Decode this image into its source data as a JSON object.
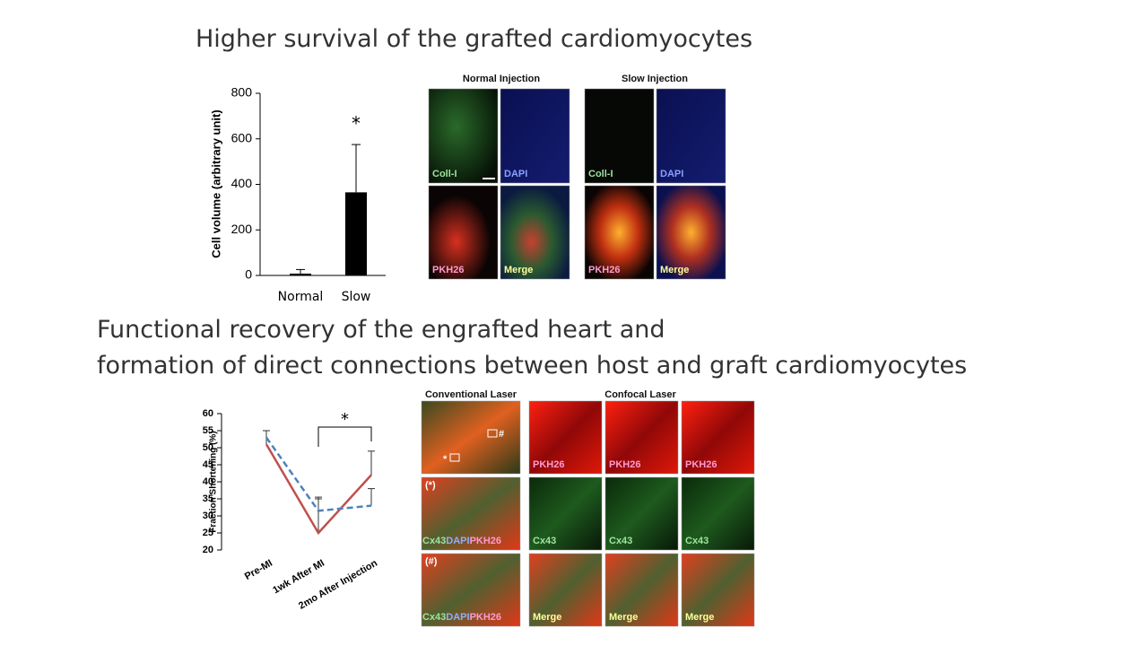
{
  "headings": {
    "top": "Higher survival of the grafted cardiomyocytes",
    "bottom_line1": "Functional recovery of the engrafted heart and",
    "bottom_line2": "formation of direct connections between host and graft cardiomyocytes"
  },
  "chart_data": [
    {
      "type": "bar",
      "categories": [
        "Normal",
        "Slow"
      ],
      "values": [
        8,
        365
      ],
      "errors": [
        18,
        210
      ],
      "color": "#000000",
      "ylim": [
        0,
        800
      ],
      "yticks": [
        0,
        200,
        400,
        600,
        800
      ],
      "ylabel": "Cell volume (arbitrary unit)",
      "annotation": "*"
    },
    {
      "type": "line",
      "categories": [
        "Pre-MI",
        "1wk After MI",
        "2mo After Injection"
      ],
      "series": [
        {
          "color": "#c0504d",
          "dash": false,
          "values": [
            51,
            25,
            42
          ],
          "errors": [
            4,
            10,
            7
          ]
        },
        {
          "color": "#4f81bd",
          "dash": true,
          "values": [
            53,
            31.5,
            33
          ],
          "errors": [
            2,
            4,
            5
          ]
        }
      ],
      "ylim": [
        20,
        60
      ],
      "yticks": [
        20,
        25,
        30,
        35,
        40,
        45,
        50,
        55,
        60
      ],
      "ylabel": "Fraction Shortening (%)",
      "annotation": "*"
    }
  ],
  "images_top": {
    "group1": "Normal Injection",
    "group2": "Slow Injection",
    "labels": [
      "Coll-I",
      "DAPI",
      "PKH26",
      "Merge",
      "Coll-I",
      "DAPI",
      "PKH26",
      "Merge"
    ]
  },
  "images_bottom": {
    "conventional": "Conventional Laser",
    "confocal": "Confocal Laser",
    "markers": [
      "*",
      "#"
    ],
    "row_labels": [
      "(*)",
      "(#)"
    ],
    "stain": [
      "Cx43",
      "DAPI",
      "PKH26"
    ],
    "confocal_labels": [
      "PKH26",
      "PKH26",
      "PKH26",
      "Cx43",
      "Cx43",
      "Cx43",
      "Merge",
      "Merge",
      "Merge"
    ]
  }
}
